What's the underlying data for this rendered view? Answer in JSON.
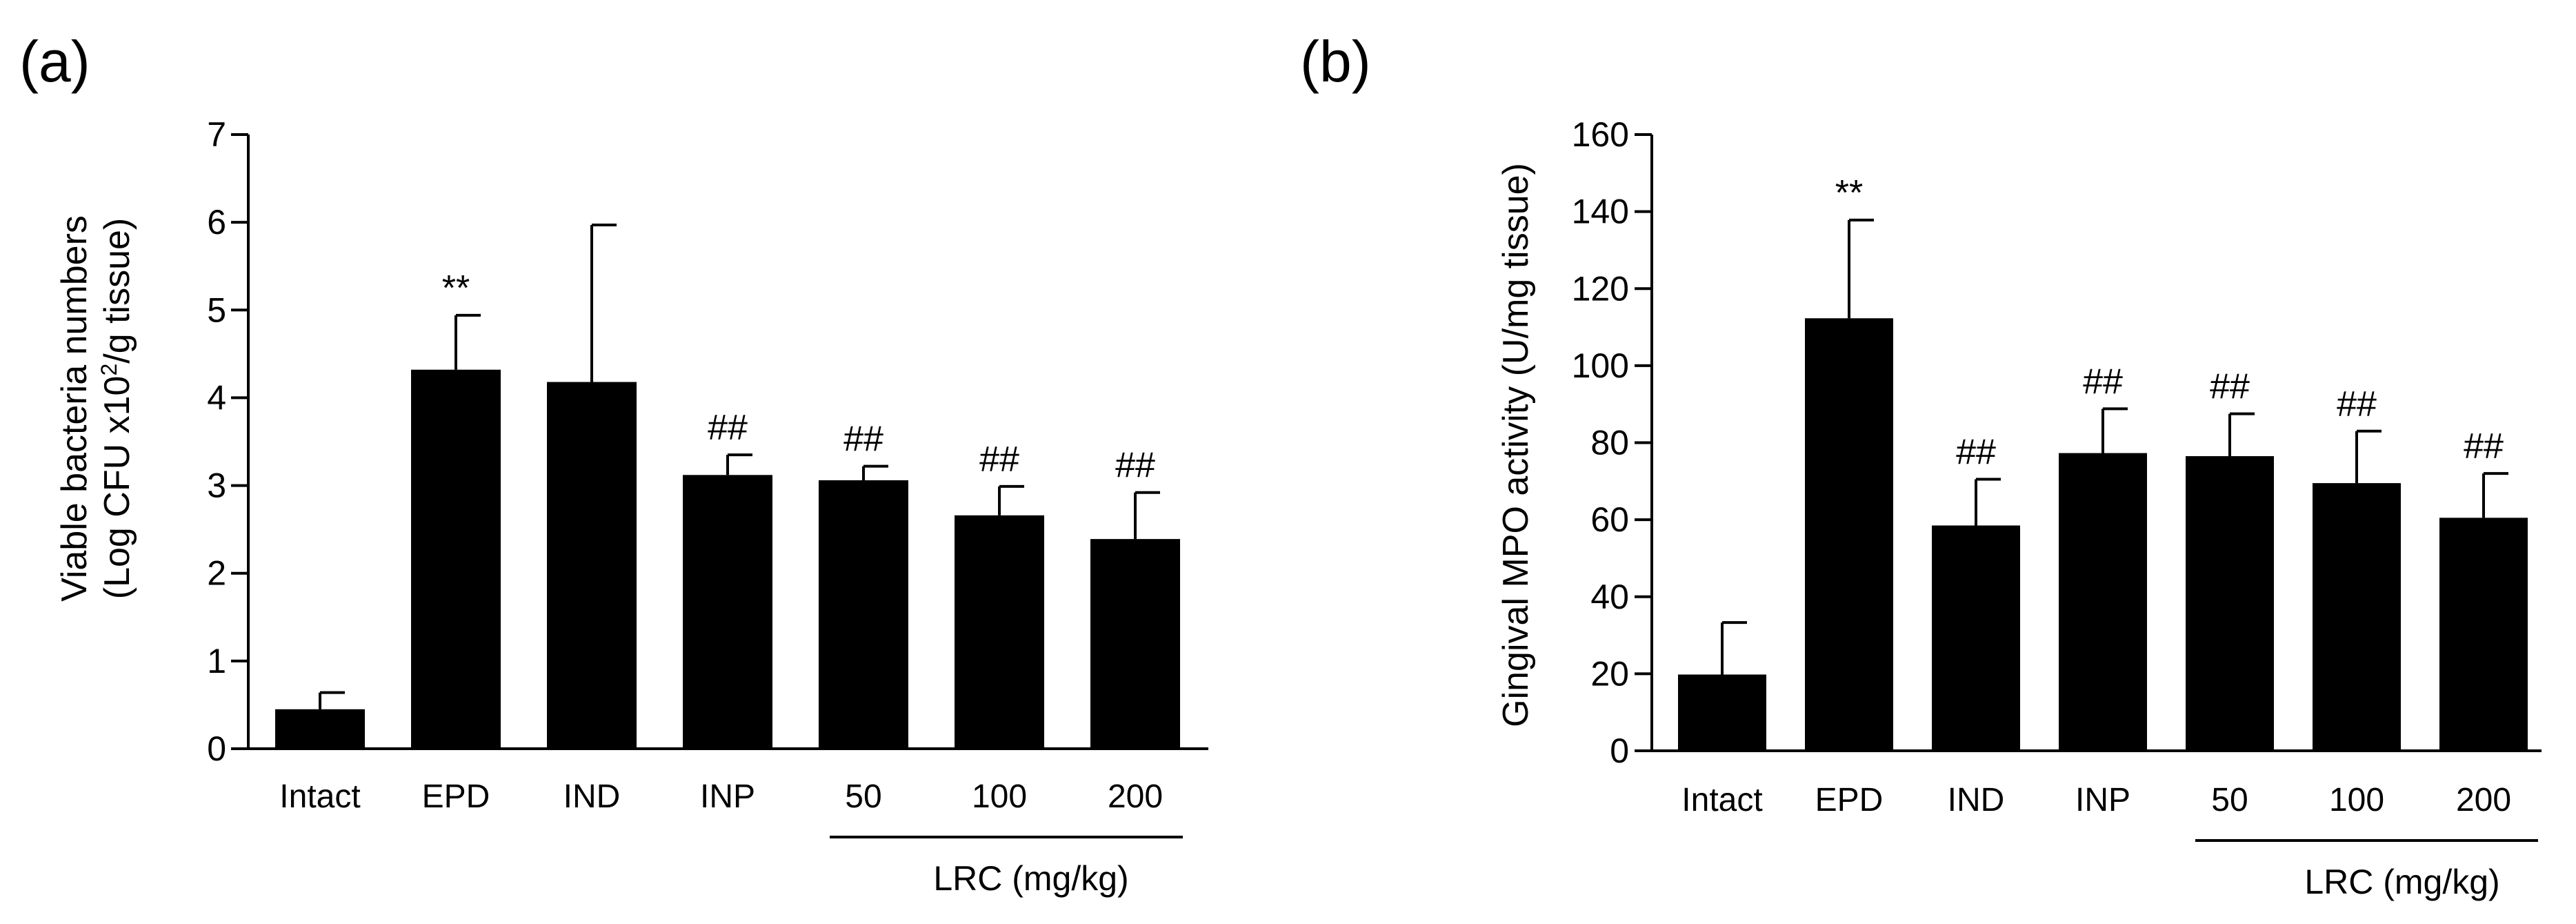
{
  "chart_data": [
    {
      "type": "bar",
      "panel_label": "(a)",
      "title": "",
      "xlabel": "",
      "ylabel_line1": "Viable bacteria numbers",
      "ylabel_line2_pre": "(Log CFU x10",
      "ylabel_line2_sup": "2",
      "ylabel_line2_post": "/g tissue)",
      "ylim": [
        0,
        7
      ],
      "yticks": [
        "0",
        "1",
        "2",
        "3",
        "4",
        "5",
        "6",
        "7"
      ],
      "categories": [
        "Intact",
        "EPD",
        "IND",
        "INP",
        "50",
        "100",
        "200"
      ],
      "values": [
        0.45,
        4.32,
        4.18,
        3.12,
        3.06,
        2.66,
        2.39
      ],
      "errors": [
        0.19,
        0.62,
        1.79,
        0.23,
        0.16,
        0.33,
        0.53
      ],
      "significance": [
        "",
        "**",
        "",
        "##",
        "##",
        "##",
        "##"
      ],
      "group_label": "LRC (mg/kg)",
      "group_span": [
        4,
        6
      ],
      "color": "#000000"
    },
    {
      "type": "bar",
      "panel_label": "(b)",
      "title": "",
      "xlabel": "",
      "ylabel": "Gingival MPO activity (U/mg tissue)",
      "ylim": [
        0,
        160
      ],
      "yticks": [
        "0",
        "20",
        "40",
        "60",
        "80",
        "100",
        "120",
        "140",
        "160"
      ],
      "categories": [
        "Intact",
        "EPD",
        "IND",
        "INP",
        "50",
        "100",
        "200"
      ],
      "values": [
        19.8,
        112.3,
        58.5,
        77.3,
        76.5,
        69.5,
        60.5
      ],
      "errors": [
        13.5,
        25.5,
        12.0,
        11.5,
        11.0,
        13.5,
        11.5
      ],
      "significance": [
        "",
        "**",
        "##",
        "##",
        "##",
        "##",
        "##"
      ],
      "group_label": "LRC (mg/kg)",
      "group_span": [
        4,
        6
      ],
      "color": "#000000"
    }
  ]
}
